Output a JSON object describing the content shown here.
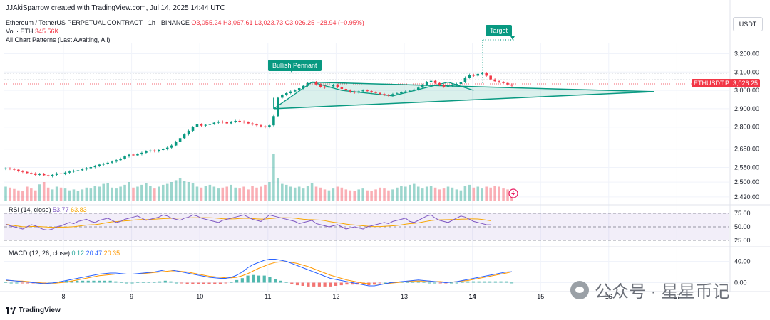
{
  "header": {
    "created_by": "JJAkiSparrow created with TradingView.com, Jul 14, 2025 14:44 UTC"
  },
  "legend": {
    "pair": "Ethereum / TetherUS PERPETUAL CONTRACT · 1h · BINANCE",
    "o": "O3,055.24",
    "h": "H3,067.61",
    "l": "L3,023.73",
    "c": "C3,026.25",
    "chg": "−28.94 (−0.95%)",
    "vol_label": "Vol · ETH",
    "vol_value": "345.56K",
    "patterns": "All Chart Patterns (Last Awaiting, All)"
  },
  "currency_button": "USDT",
  "price_axis": [
    "3,200.00",
    "3,100.00",
    "3,000.00",
    "2,900.00",
    "2,800.00",
    "2,680.00",
    "2,580.00",
    "2,500.00",
    "2,420.00"
  ],
  "price_tags": {
    "symbol": "ETHUSDT.P",
    "price": "3,026.25"
  },
  "annotations": {
    "pennant": "Bullish Pennant",
    "target": "Target"
  },
  "rsi": {
    "label": "RSI (14, close)",
    "v1": "53.77",
    "v2": "63.83",
    "axis": [
      "75.00",
      "50.00",
      "25.00"
    ]
  },
  "macd": {
    "label": "MACD (12, 26, close)",
    "v1": "0.12",
    "v2": "20.47",
    "v3": "20.35",
    "axis": [
      "40.00",
      "0.00"
    ]
  },
  "time_axis": [
    "8",
    "9",
    "10",
    "11",
    "12",
    "13",
    "14",
    "15",
    "16",
    "17"
  ],
  "footer": {
    "brand": "TradingView"
  },
  "watermark": {
    "text": "公众号 · 星星币记"
  },
  "colors": {
    "up": "#089981",
    "down": "#f23645",
    "rsi": "#7e57c2",
    "ma": "#f7a600",
    "macd": "#2962ff",
    "signal": "#ff9800"
  },
  "chart_data": {
    "type": "candlestick",
    "timeframe": "1h",
    "ylim": [
      2400,
      3260
    ],
    "closes": [
      2575,
      2572,
      2568,
      2560,
      2556,
      2550,
      2548,
      2540,
      2545,
      2538,
      2532,
      2540,
      2548,
      2545,
      2552,
      2558,
      2562,
      2565,
      2570,
      2576,
      2582,
      2588,
      2596,
      2600,
      2606,
      2612,
      2620,
      2628,
      2640,
      2650,
      2646,
      2652,
      2660,
      2668,
      2672,
      2668,
      2675,
      2680,
      2688,
      2700,
      2720,
      2740,
      2760,
      2780,
      2800,
      2815,
      2808,
      2812,
      2818,
      2824,
      2830,
      2826,
      2820,
      2828,
      2834,
      2830,
      2826,
      2820,
      2814,
      2810,
      2804,
      2800,
      2810,
      2860,
      2960,
      2975,
      2985,
      2994,
      3000,
      3012,
      3025,
      3040,
      3045,
      3032,
      3020,
      3015,
      3022,
      3030,
      3018,
      3008,
      3000,
      2992,
      2988,
      2995,
      3000,
      2996,
      2990,
      2986,
      2980,
      2975,
      2972,
      2980,
      2984,
      2990,
      2994,
      2998,
      3005,
      3015,
      3030,
      3045,
      3052,
      3040,
      3030,
      3020,
      3024,
      3030,
      3035,
      3045,
      3070,
      3085,
      3080,
      3090,
      3095,
      3080,
      3060,
      3050,
      3045,
      3040,
      3032,
      3026
    ],
    "volume": [
      30,
      28,
      25,
      22,
      20,
      30,
      26,
      22,
      35,
      40,
      28,
      24,
      30,
      28,
      26,
      22,
      24,
      20,
      24,
      28,
      26,
      32,
      30,
      36,
      38,
      28,
      26,
      30,
      34,
      40,
      28,
      30,
      34,
      38,
      32,
      26,
      30,
      34,
      36,
      40,
      44,
      48,
      42,
      40,
      38,
      30,
      28,
      32,
      34,
      30,
      26,
      28,
      30,
      34,
      28,
      26,
      30,
      24,
      32,
      28,
      30,
      34,
      40,
      100,
      48,
      36,
      34,
      30,
      28,
      30,
      26,
      32,
      38,
      30,
      28,
      24,
      22,
      26,
      30,
      28,
      24,
      22,
      20,
      24,
      26,
      22,
      20,
      24,
      28,
      26,
      22,
      24,
      28,
      32,
      30,
      34,
      36,
      30,
      26,
      30,
      32,
      28,
      24,
      26,
      30,
      28,
      24,
      22,
      32,
      34,
      28,
      30,
      26,
      30,
      28,
      32,
      30,
      26,
      24,
      22
    ],
    "rsi": [
      55,
      52,
      50,
      48,
      46,
      50,
      54,
      52,
      48,
      45,
      44,
      46,
      50,
      52,
      55,
      58,
      56,
      60,
      62,
      64,
      60,
      58,
      62,
      64,
      66,
      62,
      58,
      60,
      64,
      66,
      68,
      70,
      66,
      62,
      64,
      66,
      68,
      72,
      70,
      66,
      64,
      62,
      66,
      68,
      72,
      70,
      66,
      64,
      62,
      60,
      58,
      62,
      64,
      66,
      68,
      70,
      72,
      68,
      64,
      62,
      60,
      66,
      72,
      70,
      68,
      66,
      64,
      62,
      60,
      56,
      58,
      60,
      62,
      56,
      54,
      52,
      50,
      52,
      54,
      50,
      46,
      48,
      50,
      48,
      46,
      50,
      52,
      54,
      56,
      58,
      56,
      60,
      62,
      64,
      66,
      60,
      58,
      62,
      66,
      70,
      72,
      66,
      62,
      60,
      58,
      62,
      66,
      70,
      68,
      64,
      60,
      58,
      56,
      54,
      53.77
    ],
    "macd": [
      5,
      4,
      3,
      2,
      1,
      0,
      -1,
      -2,
      -1,
      0,
      2,
      4,
      6,
      8,
      10,
      12,
      14,
      16,
      17,
      18,
      18,
      17,
      16,
      16,
      17,
      18,
      19,
      20,
      22,
      24,
      24,
      22,
      20,
      18,
      16,
      14,
      12,
      10,
      9,
      8,
      8,
      10,
      14,
      20,
      28,
      34,
      38,
      42,
      44,
      44,
      42,
      40,
      36,
      32,
      28,
      24,
      20,
      16,
      12,
      8,
      6,
      4,
      2,
      0,
      -2,
      -4,
      -6,
      -6,
      -4,
      -2,
      0,
      1,
      2,
      3,
      4,
      5,
      4,
      3,
      2,
      1,
      0,
      1,
      2,
      4,
      6,
      8,
      10,
      12,
      14,
      16,
      18,
      20,
      20.47
    ],
    "signal": [
      4,
      4,
      3,
      3,
      2,
      1,
      0,
      -1,
      -1,
      -1,
      0,
      1,
      3,
      5,
      7,
      9,
      11,
      13,
      14,
      15,
      16,
      16,
      16,
      16,
      16,
      17,
      18,
      19,
      20,
      21,
      22,
      22,
      21,
      20,
      18,
      16,
      14,
      12,
      11,
      10,
      9,
      9,
      10,
      13,
      17,
      22,
      27,
      31,
      35,
      38,
      39,
      39,
      38,
      36,
      33,
      30,
      26,
      22,
      18,
      14,
      11,
      8,
      5,
      3,
      1,
      -1,
      -2,
      -3,
      -3,
      -2,
      -1,
      0,
      1,
      2,
      3,
      3,
      3,
      3,
      2,
      2,
      1,
      1,
      2,
      3,
      4,
      6,
      8,
      10,
      12,
      14,
      16,
      18,
      20.35
    ]
  }
}
